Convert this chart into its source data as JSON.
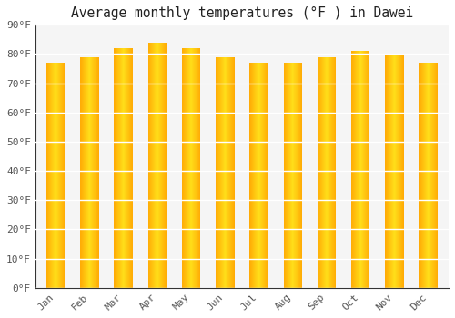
{
  "title": "Average monthly temperatures (°F ) in Dawei",
  "months": [
    "Jan",
    "Feb",
    "Mar",
    "Apr",
    "May",
    "Jun",
    "Jul",
    "Aug",
    "Sep",
    "Oct",
    "Nov",
    "Dec"
  ],
  "values": [
    77,
    79,
    82,
    84,
    82,
    79,
    77,
    77,
    79,
    81,
    80,
    77
  ],
  "bar_color_left": "#E8900A",
  "bar_color_center": "#FDB813",
  "bar_color_right": "#F5A623",
  "ylim": [
    0,
    90
  ],
  "yticks": [
    0,
    10,
    20,
    30,
    40,
    50,
    60,
    70,
    80,
    90
  ],
  "ytick_labels": [
    "0°F",
    "10°F",
    "20°F",
    "30°F",
    "40°F",
    "50°F",
    "60°F",
    "70°F",
    "80°F",
    "90°F"
  ],
  "background_color": "#FFFFFF",
  "plot_bg_color": "#F5F5F5",
  "grid_color": "#FFFFFF",
  "title_fontsize": 10.5,
  "tick_fontsize": 8,
  "font_family": "monospace",
  "bar_width": 0.55
}
